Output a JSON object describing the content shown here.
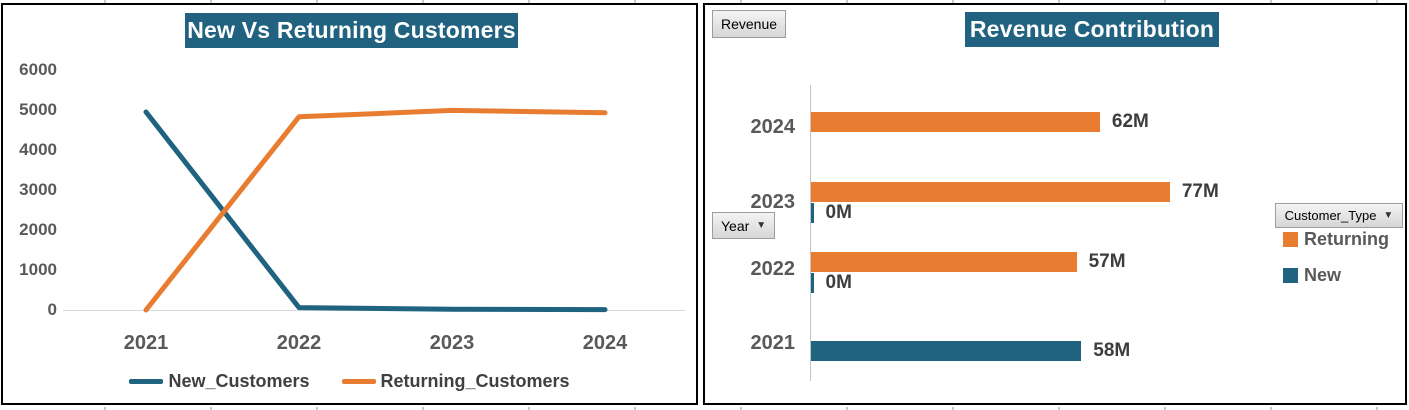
{
  "colors": {
    "teal": "#1F6380",
    "orange": "#E87D31",
    "title_bg": "#206280",
    "axis_text": "#595959",
    "label_text": "#3D3D3D",
    "axis_line": "#D9D9D9"
  },
  "chart_data": [
    {
      "type": "line",
      "title": "New Vs Returning Customers",
      "x": [
        "2021",
        "2022",
        "2023",
        "2024"
      ],
      "series": [
        {
          "name": "New_Customers",
          "color": "#1F6380",
          "values": [
            4950,
            60,
            20,
            10
          ]
        },
        {
          "name": "Returning_Customers",
          "color": "#E87D31",
          "values": [
            0,
            4830,
            4990,
            4930
          ]
        }
      ],
      "ylim": [
        0,
        6000
      ],
      "y_ticks": [
        6000,
        5000,
        4000,
        3000,
        2000,
        1000,
        0
      ],
      "grid": false,
      "legend_position": "bottom"
    },
    {
      "type": "bar",
      "orientation": "horizontal",
      "title": "Revenue Contribution",
      "value_unit": "M",
      "categories": [
        "2024",
        "2023",
        "2022",
        "2021"
      ],
      "rows": [
        {
          "year": "2024",
          "bars": [
            {
              "series": "Returning",
              "value": 62,
              "label": "62M"
            }
          ]
        },
        {
          "year": "2023",
          "bars": [
            {
              "series": "Returning",
              "value": 77,
              "label": "77M"
            },
            {
              "series": "New",
              "value": 0,
              "label": "0M"
            }
          ]
        },
        {
          "year": "2022",
          "bars": [
            {
              "series": "Returning",
              "value": 57,
              "label": "57M"
            },
            {
              "series": "New",
              "value": 0,
              "label": "0M"
            }
          ]
        },
        {
          "year": "2021",
          "bars": [
            {
              "series": "New",
              "value": 58,
              "label": "58M"
            }
          ]
        }
      ],
      "series_colors": {
        "Returning": "#E87D31",
        "New": "#1F6380"
      },
      "legend": [
        {
          "name": "Returning",
          "color": "#E87D31"
        },
        {
          "name": "New",
          "color": "#1F6380"
        }
      ],
      "field_buttons": {
        "value": "Revenue",
        "axis": "Year",
        "legend": "Customer_Type"
      },
      "xmax": 77,
      "legend_position": "right"
    }
  ]
}
